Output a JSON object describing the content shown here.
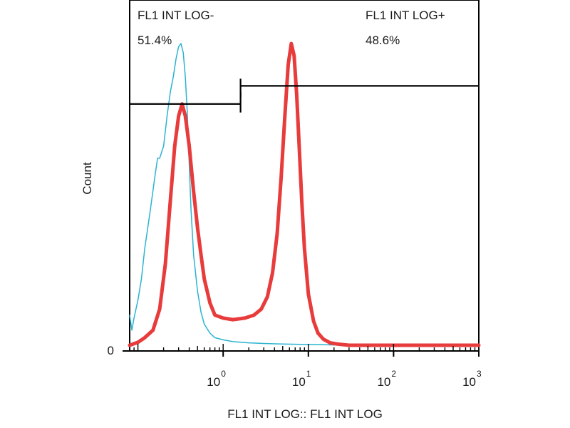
{
  "chart_data": {
    "type": "area",
    "xlabel": "FL1 INT LOG:: FL1 INT LOG",
    "ylabel": "Count",
    "x_scale": "log",
    "xlim": [
      0.08,
      1000
    ],
    "ylim": [
      0,
      1.05
    ],
    "x_ticks": [
      {
        "value": 1,
        "base": "10",
        "exp": "0"
      },
      {
        "value": 10,
        "base": "10",
        "exp": "1"
      },
      {
        "value": 100,
        "base": "10",
        "exp": "2"
      },
      {
        "value": 1000,
        "base": "10",
        "exp": "3"
      }
    ],
    "y_ticks": [
      {
        "value": 0,
        "label": "0"
      }
    ],
    "gates": [
      {
        "name": "FL1 INT LOG-",
        "percent": "51.4%",
        "x_range": [
          0.08,
          1.6
        ],
        "y": 0.8
      },
      {
        "name": "FL1 INT LOG+",
        "percent": "48.6%",
        "x_range": [
          1.6,
          1000
        ],
        "y": 0.86
      }
    ],
    "series": [
      {
        "color": "#2bb3d0",
        "line_width": 1.5,
        "x": [
          0.08,
          0.085,
          0.09,
          0.1,
          0.11,
          0.12,
          0.14,
          0.16,
          0.17,
          0.18,
          0.2,
          0.22,
          0.24,
          0.26,
          0.28,
          0.3,
          0.32,
          0.34,
          0.36,
          0.38,
          0.4,
          0.42,
          0.45,
          0.5,
          0.55,
          0.6,
          0.7,
          0.8,
          1.0,
          1.3,
          1.6,
          2.0,
          3.0,
          5.0,
          8.0,
          15,
          30,
          1000
        ],
        "y": [
          0.1,
          0.05,
          0.09,
          0.15,
          0.22,
          0.32,
          0.45,
          0.57,
          0.62,
          0.62,
          0.66,
          0.76,
          0.84,
          0.89,
          0.95,
          0.99,
          1.0,
          0.97,
          0.89,
          0.77,
          0.6,
          0.45,
          0.3,
          0.18,
          0.11,
          0.07,
          0.04,
          0.025,
          0.018,
          0.012,
          0.01,
          0.008,
          0.006,
          0.004,
          0.003,
          0.002,
          0.0,
          0.0
        ]
      },
      {
        "color": "#e83b3b",
        "line_width": 5,
        "x": [
          0.08,
          0.1,
          0.12,
          0.15,
          0.18,
          0.21,
          0.24,
          0.27,
          0.3,
          0.33,
          0.36,
          0.4,
          0.45,
          0.5,
          0.55,
          0.6,
          0.7,
          0.8,
          1.0,
          1.3,
          1.8,
          2.3,
          2.8,
          3.3,
          3.8,
          4.3,
          4.8,
          5.3,
          5.8,
          6.3,
          6.8,
          7.3,
          7.8,
          8.4,
          9.0,
          10.0,
          11.5,
          13.0,
          15.0,
          18.0,
          22.0,
          30.0,
          50,
          100,
          1000
        ],
        "y": [
          0.0,
          0.01,
          0.025,
          0.05,
          0.12,
          0.27,
          0.48,
          0.66,
          0.76,
          0.8,
          0.76,
          0.66,
          0.51,
          0.39,
          0.3,
          0.22,
          0.14,
          0.1,
          0.09,
          0.085,
          0.09,
          0.1,
          0.12,
          0.16,
          0.24,
          0.37,
          0.56,
          0.76,
          0.93,
          1.0,
          0.96,
          0.83,
          0.66,
          0.47,
          0.32,
          0.17,
          0.08,
          0.04,
          0.02,
          0.008,
          0.004,
          0.0,
          0.0,
          0.0,
          0.0
        ]
      }
    ]
  }
}
